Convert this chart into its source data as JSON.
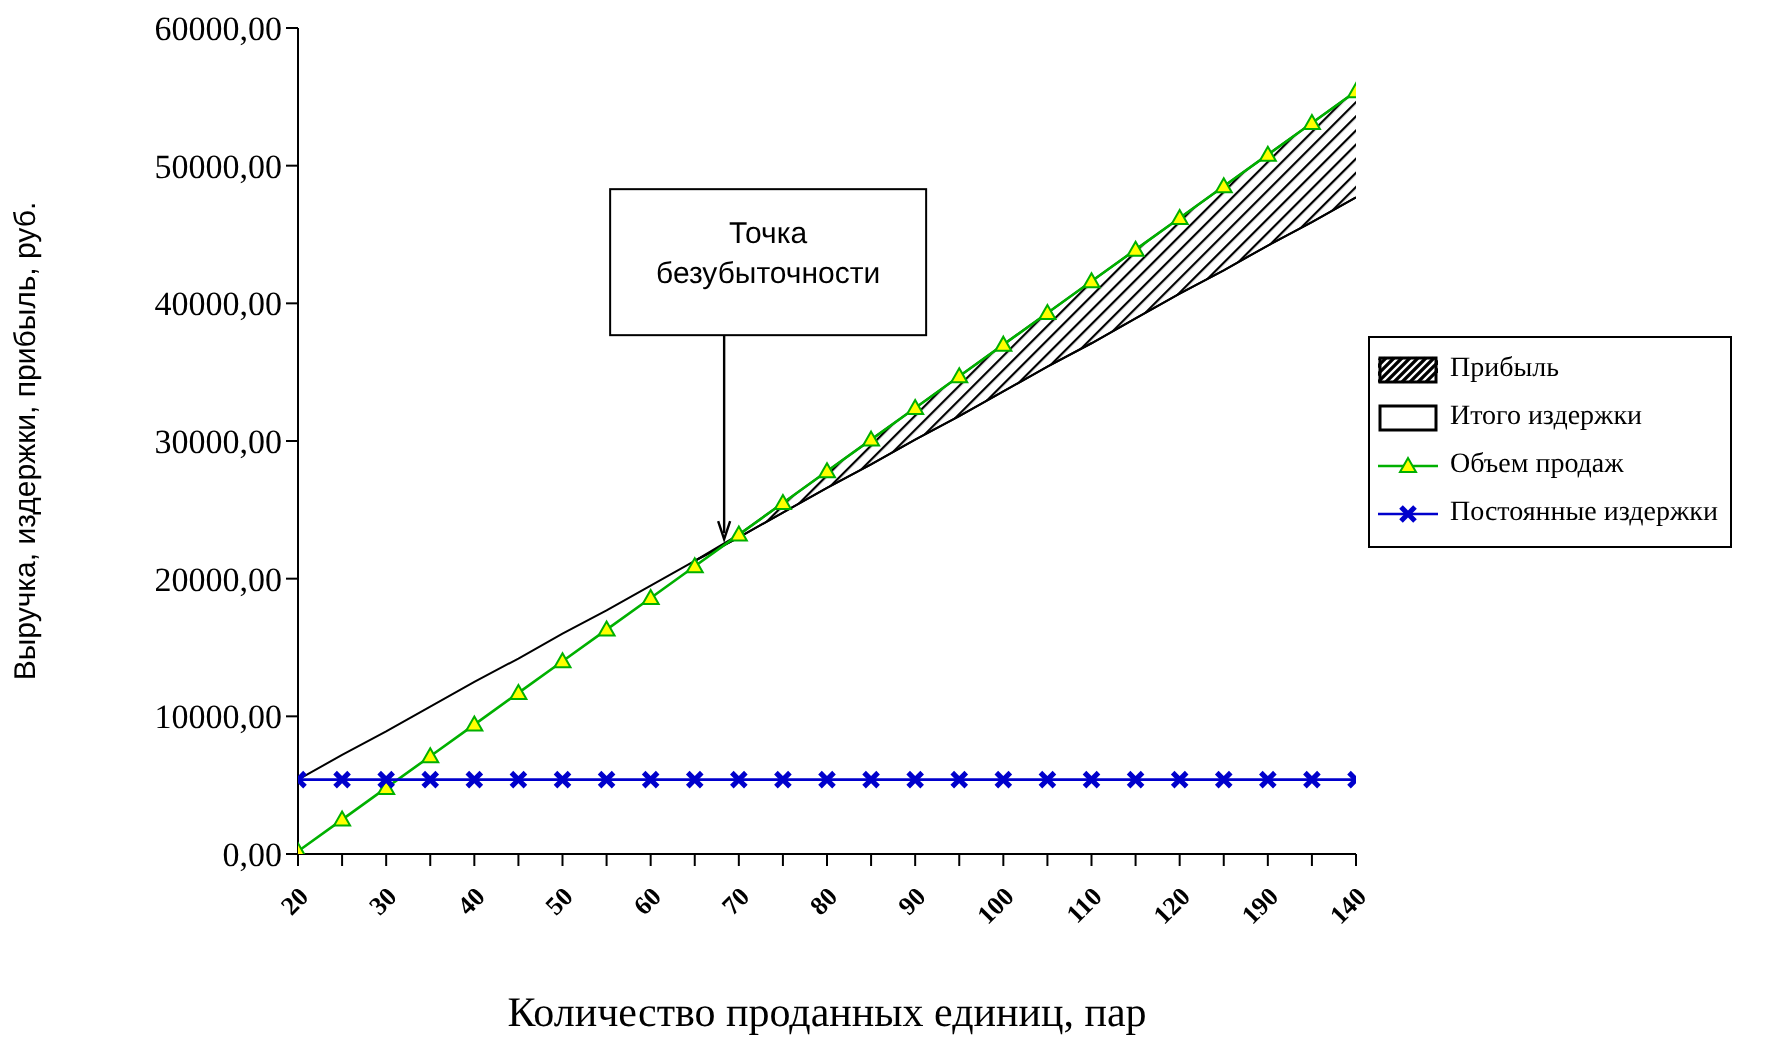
{
  "chart_data": {
    "type": "line",
    "xlabel": "Количество проданных единиц, пар",
    "ylabel": "Выручка, издержки, прибыль, руб.",
    "categories": [
      "20",
      null,
      "30",
      null,
      "40",
      null,
      "50",
      null,
      "60",
      null,
      "70",
      null,
      "80",
      null,
      "90",
      null,
      "100",
      null,
      "110",
      null,
      "120",
      null,
      "190",
      null,
      "140"
    ],
    "ylim": [
      0,
      60000
    ],
    "yticks": [
      {
        "value": 0,
        "label": "0,00"
      },
      {
        "value": 10000,
        "label": "10000,00"
      },
      {
        "value": 20000,
        "label": "20000,00"
      },
      {
        "value": 30000,
        "label": "30000,00"
      },
      {
        "value": 40000,
        "label": "40000,00"
      },
      {
        "value": 50000,
        "label": "50000,00"
      },
      {
        "value": 60000,
        "label": "60000,00"
      }
    ],
    "stacked": true,
    "legend": "right",
    "series": [
      {
        "name": "Итого издержки",
        "type": "area",
        "color": "#ffffff",
        "values": [
          5400,
          7200,
          8900,
          10700,
          12500,
          14200,
          16000,
          17700,
          19500,
          21300,
          23000,
          24800,
          26600,
          28300,
          30100,
          31800,
          33600,
          35400,
          37100,
          38900,
          40700,
          42400,
          44200,
          45900,
          47700
        ]
      },
      {
        "name": "Прибыль",
        "type": "area",
        "color": "#000000",
        "values": [
          null,
          null,
          null,
          null,
          null,
          null,
          null,
          null,
          null,
          0,
          200,
          700,
          1200,
          1800,
          2300,
          2900,
          3400,
          3900,
          4500,
          5000,
          5500,
          6100,
          6600,
          7200,
          7700
        ]
      },
      {
        "name": "Объем продаж",
        "color": "#00b000",
        "marker": "triangle",
        "values": [
          200,
          2500,
          4800,
          7100,
          9400,
          11700,
          14000,
          16300,
          18600,
          20900,
          23200,
          25500,
          27800,
          30100,
          32400,
          34700,
          37000,
          39300,
          41600,
          43900,
          46200,
          48500,
          50800,
          53100,
          55400
        ]
      },
      {
        "name": "Постоянные издержки",
        "color": "#0000cc",
        "marker": "cross",
        "values": [
          5400,
          5400,
          5400,
          5400,
          5400,
          5400,
          5400,
          5400,
          5400,
          5400,
          5400,
          5400,
          5400,
          5400,
          5400,
          5400,
          5400,
          5400,
          5400,
          5400,
          5400,
          5400,
          5400,
          5400,
          5400
        ]
      }
    ],
    "annotations": [
      "Точка безубыточности"
    ]
  }
}
